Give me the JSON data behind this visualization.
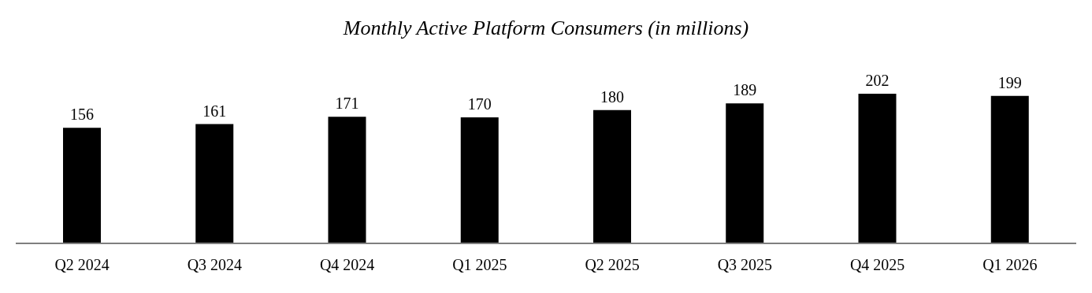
{
  "chart_data": {
    "type": "bar",
    "title": "Monthly Active Platform Consumers (in millions)",
    "categories": [
      "Q2 2024",
      "Q3 2024",
      "Q4 2024",
      "Q1 2025",
      "Q2 2025",
      "Q3 2025",
      "Q4 2025",
      "Q1 2026"
    ],
    "values": [
      156,
      161,
      171,
      170,
      180,
      189,
      202,
      199
    ],
    "color": "#000000",
    "data_labels": true
  }
}
